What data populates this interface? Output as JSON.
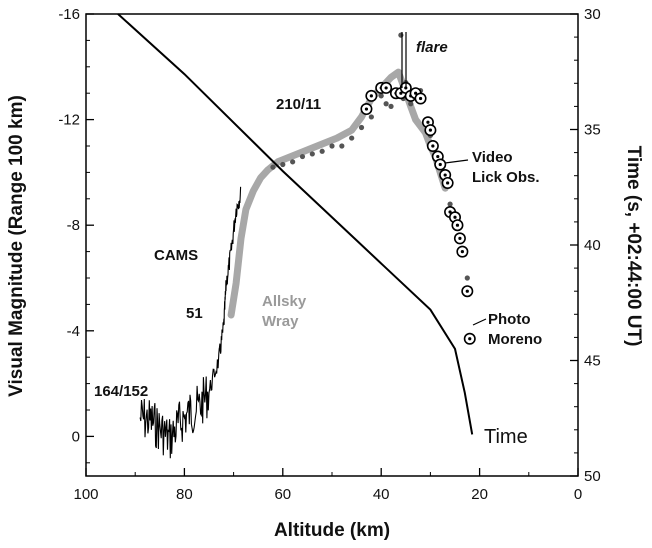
{
  "chart_data": {
    "type": "line",
    "xlabel": "Altitude (km)",
    "ylabel": "Visual Magnitude (Range 100 km)",
    "y2label": "Time (s, +02:44:00 UT)",
    "xlim": [
      100,
      0
    ],
    "ylim": [
      1.5,
      -16
    ],
    "y2lim": [
      30,
      50
    ],
    "x_ticks": [
      "100",
      "80",
      "60",
      "40",
      "20",
      "0"
    ],
    "x_tick_values": [
      100,
      80,
      60,
      40,
      20,
      0
    ],
    "y_ticks": [
      "-16",
      "-12",
      "-8",
      "-4",
      "0"
    ],
    "y_tick_values": [
      -16,
      -12,
      -8,
      -4,
      0
    ],
    "y2_ticks": [
      "30",
      "35",
      "40",
      "45",
      "50"
    ],
    "y2_tick_values": [
      30,
      35,
      40,
      45,
      50
    ],
    "annotations": {
      "cams": "CAMS",
      "n51": "51",
      "n164": "164/152",
      "allsky1": "Allsky",
      "allsky2": "Wray",
      "n210": "210/11",
      "flare": "flare",
      "video1": "Video",
      "video2": "Lick Obs.",
      "photo1": "Photo",
      "photo2": "Moreno",
      "time": "Time"
    },
    "series": [
      {
        "name": "Time",
        "color": "#000000",
        "axis": "right",
        "points": [
          [
            93.5,
            30
          ],
          [
            80,
            32.6
          ],
          [
            60,
            36.8
          ],
          [
            45,
            39.8
          ],
          [
            30,
            42.8
          ],
          [
            25,
            44.5
          ],
          [
            23,
            46.4
          ],
          [
            21.5,
            48.2
          ]
        ]
      },
      {
        "name": "CAMS",
        "color": "#000000",
        "style": "noisy",
        "points": [
          [
            89,
            -0.7
          ],
          [
            87,
            -0.6
          ],
          [
            85,
            -0.3
          ],
          [
            83,
            0.1
          ],
          [
            81,
            -0.5
          ],
          [
            79,
            -0.9
          ],
          [
            77,
            -1.1
          ],
          [
            75,
            -1.7
          ],
          [
            73,
            -2.9
          ],
          [
            72,
            -4.2
          ],
          [
            71.5,
            -5.8
          ],
          [
            70.5,
            -7.0
          ],
          [
            69.5,
            -8.6
          ],
          [
            68.5,
            -9.2
          ]
        ]
      },
      {
        "name": "Allsky",
        "color": "#a8a8a8",
        "points": [
          [
            70.5,
            -4.6
          ],
          [
            69.5,
            -5.8
          ],
          [
            68.5,
            -7.5
          ],
          [
            67.5,
            -8.6
          ],
          [
            66,
            -9.3
          ],
          [
            64.5,
            -9.8
          ],
          [
            63,
            -10.1
          ],
          [
            61,
            -10.4
          ],
          [
            57,
            -10.7
          ],
          [
            53,
            -11.0
          ],
          [
            49,
            -11.3
          ],
          [
            46,
            -11.6
          ],
          [
            44,
            -12.1
          ],
          [
            42,
            -12.8
          ],
          [
            40,
            -13.2
          ],
          [
            38,
            -13.6
          ],
          [
            36.5,
            -13.8
          ],
          [
            35.5,
            -13.3
          ],
          [
            34,
            -12.5
          ],
          [
            33,
            -12.0
          ],
          [
            31,
            -11.5
          ],
          [
            30,
            -11.0
          ],
          [
            29,
            -10.6
          ],
          [
            28,
            -10.0
          ],
          [
            27,
            -9.4
          ]
        ]
      },
      {
        "name": "Video Lick Obs.",
        "color": "#555555",
        "points": [
          [
            62,
            -10.2
          ],
          [
            60,
            -10.3
          ],
          [
            58,
            -10.4
          ],
          [
            56,
            -10.6
          ],
          [
            54,
            -10.7
          ],
          [
            52,
            -10.8
          ],
          [
            50,
            -11.0
          ],
          [
            48,
            -11.0
          ],
          [
            46,
            -11.3
          ],
          [
            44,
            -11.7
          ],
          [
            42,
            -12.1
          ],
          [
            40,
            -12.9
          ],
          [
            39,
            -12.6
          ],
          [
            38,
            -12.5
          ],
          [
            37,
            -13.0
          ],
          [
            36,
            -15.2
          ],
          [
            35.5,
            -12.8
          ],
          [
            35,
            -13.4
          ],
          [
            34,
            -12.6
          ],
          [
            33,
            -12.9
          ],
          [
            32,
            -13.1
          ],
          [
            31,
            -11.9
          ],
          [
            30,
            -11.4
          ],
          [
            29,
            -10.6
          ],
          [
            28,
            -10.4
          ],
          [
            27,
            -9.5
          ],
          [
            26,
            -8.8
          ],
          [
            25,
            -8.1
          ],
          [
            24,
            -7.6
          ],
          [
            23,
            -6.9
          ],
          [
            22.5,
            -6.0
          ],
          [
            22,
            -5.6
          ]
        ]
      },
      {
        "name": "Photo Moreno",
        "color": "#000000",
        "marker": "circle",
        "points": [
          [
            43,
            -12.4
          ],
          [
            42,
            -12.9
          ],
          [
            40,
            -13.2
          ],
          [
            39,
            -13.2
          ],
          [
            37,
            -13.0
          ],
          [
            36,
            -13.0
          ],
          [
            35,
            -13.2
          ],
          [
            34,
            -12.9
          ],
          [
            33,
            -13.0
          ],
          [
            32,
            -12.8
          ],
          [
            30.5,
            -11.9
          ],
          [
            30,
            -11.6
          ],
          [
            29.5,
            -11.0
          ],
          [
            28.5,
            -10.6
          ],
          [
            28,
            -10.3
          ],
          [
            27,
            -9.9
          ],
          [
            26.5,
            -9.6
          ],
          [
            26,
            -8.5
          ],
          [
            25,
            -8.3
          ],
          [
            24.5,
            -8.0
          ],
          [
            24,
            -7.5
          ],
          [
            23.5,
            -7.0
          ],
          [
            22.5,
            -5.5
          ],
          [
            22,
            -3.7
          ]
        ]
      }
    ]
  }
}
